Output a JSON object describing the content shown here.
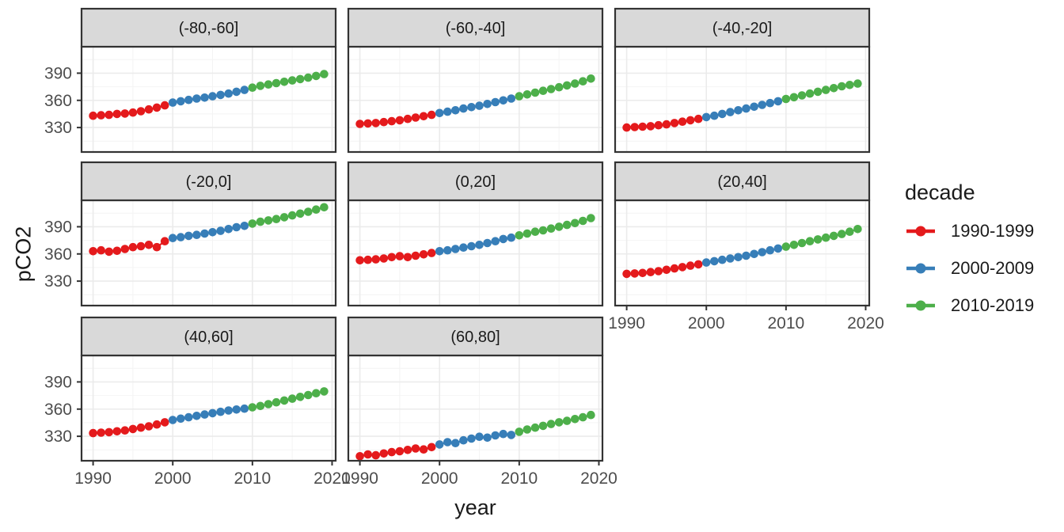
{
  "axes": {
    "x_title": "year",
    "y_title": "pCO2"
  },
  "legend": {
    "title": "decade",
    "items": [
      {
        "label": "1990-1999",
        "color": "#E41A1C"
      },
      {
        "label": "2000-2009",
        "color": "#377EB8"
      },
      {
        "label": "2010-2019",
        "color": "#4DAF4A"
      }
    ]
  },
  "theme": {
    "strip_fill": "#D9D9D9",
    "strip_border": "#333333",
    "panel_border": "#333333",
    "panel_fill": "#FFFFFF",
    "grid_major": "#EBEBEB",
    "grid_minor": "#F4F4F4",
    "tick_color": "#333333",
    "tick_label_color": "#4D4D4D",
    "strip_text_color": "#1A1A1A",
    "background": "#FFFFFF"
  },
  "chart_data": {
    "type": "line",
    "title": "",
    "xlabel": "year",
    "ylabel": "pCO2",
    "grid": "major+minor",
    "legend_position": "right",
    "x_ticks": [
      1990,
      2000,
      2010,
      2020
    ],
    "y_ticks": [
      330,
      360,
      390
    ],
    "x_minor_ticks": [
      1995,
      2005,
      2015
    ],
    "y_minor_ticks": [
      315,
      345,
      375,
      405
    ],
    "xlim": [
      1988.55,
      2020.45
    ],
    "ylim": [
      303,
      419.2
    ],
    "x": [
      1990,
      1991,
      1992,
      1993,
      1994,
      1995,
      1996,
      1997,
      1998,
      1999,
      2000,
      2001,
      2002,
      2003,
      2004,
      2005,
      2006,
      2007,
      2008,
      2009,
      2010,
      2011,
      2012,
      2013,
      2014,
      2015,
      2016,
      2017,
      2018,
      2019
    ],
    "decades": [
      {
        "name": "1990-1999",
        "color": "#E41A1C",
        "year_start": 1990,
        "year_end": 1999
      },
      {
        "name": "2000-2009",
        "color": "#377EB8",
        "year_start": 2000,
        "year_end": 2009
      },
      {
        "name": "2010-2019",
        "color": "#4DAF4A",
        "year_start": 2010,
        "year_end": 2019
      }
    ],
    "facets": [
      {
        "label": "(-80,-60]",
        "values": [
          343,
          343.5,
          344,
          345,
          345.5,
          346.5,
          348,
          350,
          352,
          354.5,
          357.5,
          359,
          360.5,
          362,
          363,
          364.5,
          366,
          367.5,
          369.5,
          371.5,
          374,
          376,
          377.5,
          379,
          380.5,
          382,
          383.5,
          385,
          387,
          389
        ]
      },
      {
        "label": "(-60,-40]",
        "values": [
          334,
          334.5,
          335,
          336,
          337,
          338,
          339.5,
          341,
          342.5,
          344,
          346,
          347.5,
          349,
          351,
          352.5,
          354,
          356,
          358,
          360,
          362,
          364.5,
          366.5,
          368.5,
          370.5,
          372.5,
          374.5,
          376.5,
          378.5,
          381,
          384
        ]
      },
      {
        "label": "(-40,-20]",
        "values": [
          330,
          330.5,
          331,
          331.5,
          332.5,
          333.5,
          335,
          336.5,
          338,
          339.5,
          341.5,
          343,
          345,
          347,
          349,
          351,
          353,
          355,
          357,
          359,
          361.5,
          363.5,
          365.5,
          367.5,
          369.5,
          371.5,
          373.5,
          375.5,
          377,
          378.5
        ]
      },
      {
        "label": "(-20,0]",
        "values": [
          363,
          364,
          362.5,
          363.5,
          365.5,
          367.5,
          368.5,
          370,
          367.5,
          374,
          377.5,
          378.5,
          380,
          381,
          382.5,
          384,
          385.5,
          387.5,
          389.5,
          391,
          393.5,
          395.5,
          397,
          398.5,
          400.5,
          402.5,
          404.5,
          406.5,
          409,
          411.5
        ]
      },
      {
        "label": "(0,20]",
        "values": [
          353,
          353.5,
          354,
          355,
          356.5,
          357.5,
          356.5,
          358,
          359.5,
          361,
          363,
          364,
          365.5,
          367,
          368.5,
          370,
          372,
          374,
          376.5,
          378,
          380.5,
          382.5,
          384.5,
          386,
          388,
          390,
          392,
          394,
          396.5,
          399.5
        ]
      },
      {
        "label": "(20,40]",
        "values": [
          338,
          338.5,
          339,
          340,
          341,
          342.5,
          344,
          345.5,
          347,
          348.5,
          350.5,
          352,
          353.5,
          355,
          356.5,
          358,
          360,
          362,
          364,
          366,
          368,
          370,
          372,
          374,
          376,
          378,
          380,
          382,
          384.5,
          387.5
        ]
      },
      {
        "label": "(40,60]",
        "values": [
          333.5,
          334,
          334.5,
          335.5,
          336.5,
          338,
          339.5,
          341,
          343,
          345.5,
          348,
          349.5,
          351,
          352.5,
          354,
          355.5,
          357,
          358.5,
          359.5,
          360.5,
          362,
          363.5,
          365.5,
          367.5,
          369.5,
          371.5,
          373.5,
          375.5,
          377.5,
          379.5
        ]
      },
      {
        "label": "(60,80]",
        "values": [
          308,
          310,
          309,
          311,
          312.5,
          313.5,
          315,
          316.5,
          315.5,
          318,
          321,
          323.5,
          322.5,
          325.5,
          327.5,
          329.5,
          328.5,
          331,
          332.5,
          331.5,
          335,
          337.5,
          339.5,
          341.5,
          343.5,
          345.5,
          347,
          349,
          351,
          353.5
        ]
      }
    ]
  }
}
